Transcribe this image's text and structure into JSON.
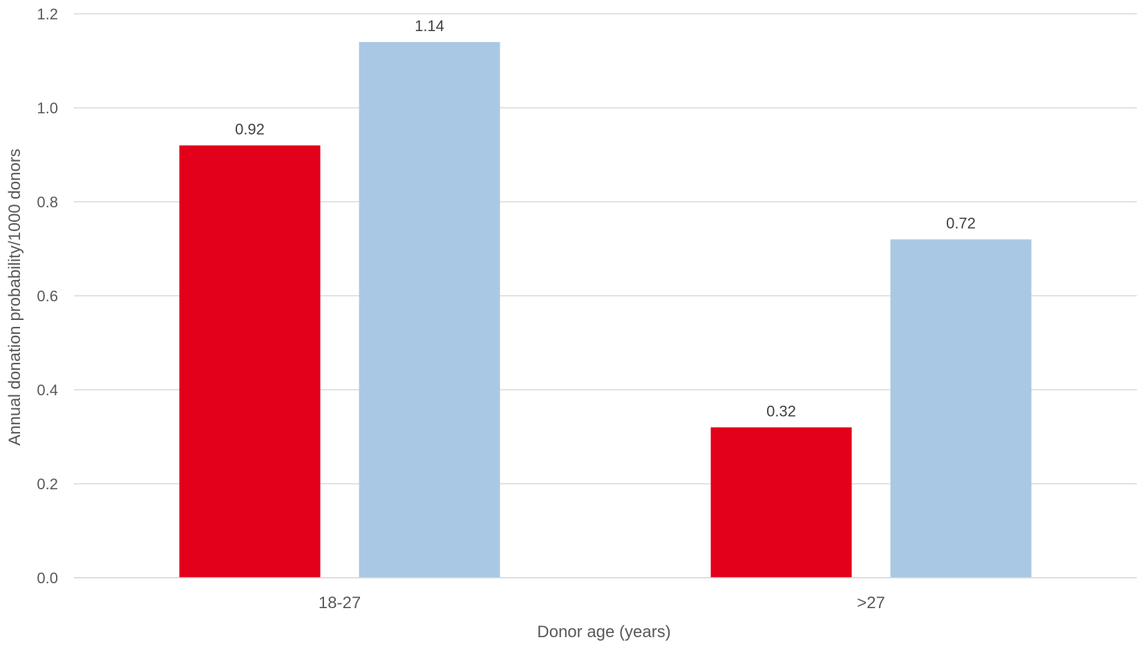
{
  "chart_data": {
    "type": "bar",
    "title": "",
    "xlabel": "Donor age (years)",
    "ylabel": "Annual donation probability/1000 donors",
    "categories": [
      "18-27",
      ">27"
    ],
    "series": [
      {
        "values": [
          0.92,
          0.32
        ],
        "color": "#E2001A"
      },
      {
        "values": [
          1.14,
          0.72
        ],
        "color": "#A9C8E3"
      }
    ],
    "ylim": [
      0,
      1.2
    ],
    "yticks": [
      "0.0",
      "0.2",
      "0.4",
      "0.6",
      "0.8",
      "1.0",
      "1.2"
    ],
    "data_labels": [
      [
        "0.92",
        "0.32"
      ],
      [
        "1.14",
        "0.72"
      ]
    ],
    "grid": true,
    "legend": "none"
  }
}
